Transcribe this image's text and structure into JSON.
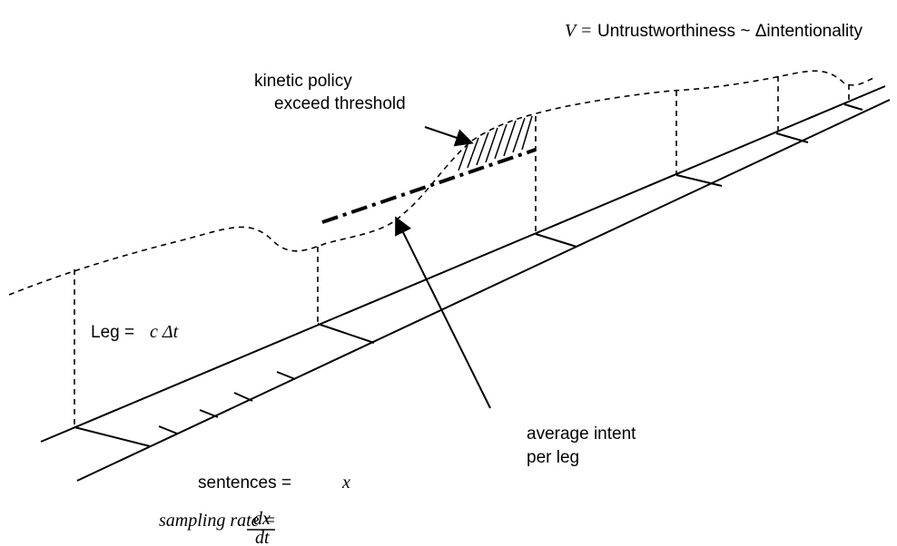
{
  "formula": {
    "lhs": "V =",
    "rhs": "Untrustworthiness ~ Δintentionality"
  },
  "threshold_label": {
    "line1": "kinetic policy",
    "line2": "exceed threshold"
  },
  "leg_label": {
    "lhs": "Leg =",
    "rhs": "c Δt"
  },
  "average_label": {
    "line1": "average intent",
    "line2": "per leg"
  },
  "sentences_label": {
    "lhs": "sentences =",
    "rhs": "x"
  },
  "sampling_label": {
    "lhs": "sampling rate =",
    "numerator": "dx",
    "denominator": "dt"
  }
}
